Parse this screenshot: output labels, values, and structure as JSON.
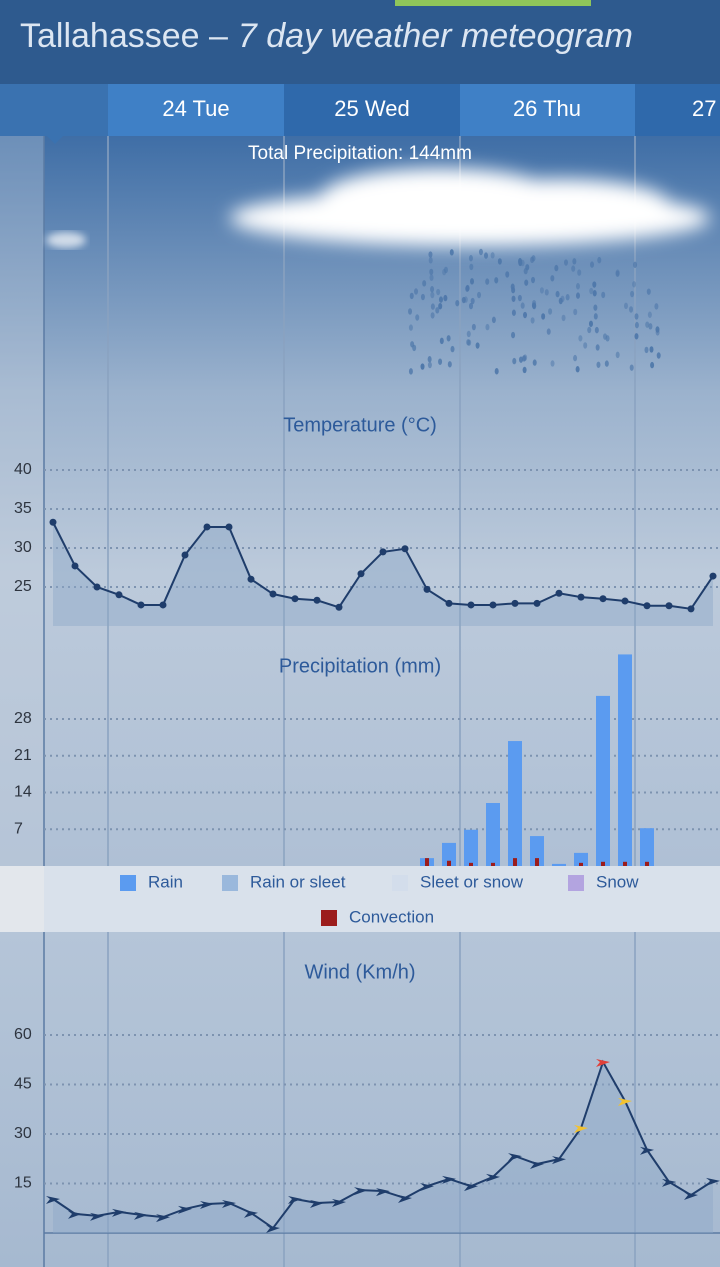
{
  "header": {
    "title": "Tallahassee –",
    "subtitle": "7 day weather meteogram"
  },
  "days": [
    "24 Tue",
    "25 Wed",
    "26 Thu",
    "27"
  ],
  "total_precipitation": "Total Precipitation: 144mm",
  "chart_data": [
    {
      "type": "line",
      "title": "Temperature (°C)",
      "values": [
        33.3,
        27.7,
        25,
        24,
        22.7,
        22.7,
        29.1,
        32.7,
        32.7,
        26,
        24.1,
        23.5,
        23.3,
        22.4,
        26.7,
        29.5,
        29.9,
        24.7,
        22.9,
        22.7,
        22.7,
        22.9,
        22.9,
        24.2,
        23.7,
        23.5,
        23.2,
        22.6,
        22.6,
        22.2,
        26.4
      ],
      "color": "#1f3d6b",
      "ylim": [
        20,
        40
      ],
      "yticks": [
        25,
        30,
        35,
        40
      ],
      "grid": true,
      "top_line_color": "#e0504a"
    },
    {
      "type": "bar",
      "title": "Precipitation (mm)",
      "series": [
        {
          "name": "Rain",
          "color": "#5b9bf0",
          "values": [
            null,
            null,
            null,
            null,
            null,
            null,
            null,
            null,
            null,
            null,
            null,
            null,
            null,
            null,
            null,
            null,
            null,
            1.5,
            4.4,
            6.9,
            12,
            23.8,
            5.7,
            0.4,
            2.5,
            32.4,
            40.3,
            7.2,
            null,
            null,
            null
          ]
        },
        {
          "name": "Rain or sleet",
          "color": "#9ab8dc",
          "values": [
            null,
            null,
            null,
            null,
            null,
            null,
            null,
            null,
            null,
            null,
            null,
            null,
            null,
            null,
            null,
            null,
            null,
            null,
            null,
            null,
            null,
            null,
            null,
            null,
            null,
            null,
            null,
            null,
            null,
            null,
            null
          ]
        },
        {
          "name": "Sleet or snow",
          "color": "#d3ddeb",
          "values": [
            null,
            null,
            null,
            null,
            null,
            null,
            null,
            null,
            null,
            null,
            null,
            null,
            null,
            null,
            null,
            null,
            null,
            null,
            null,
            null,
            null,
            null,
            null,
            null,
            null,
            null,
            null,
            null,
            null,
            null,
            null
          ]
        },
        {
          "name": "Snow",
          "color": "#b3a4e0",
          "values": [
            null,
            null,
            null,
            null,
            null,
            null,
            null,
            null,
            null,
            null,
            null,
            null,
            null,
            null,
            null,
            null,
            null,
            null,
            null,
            null,
            null,
            null,
            null,
            null,
            null,
            null,
            null,
            null,
            null,
            null,
            null
          ]
        },
        {
          "name": "Convection",
          "color": "#9b1c1c",
          "values": [
            null,
            null,
            null,
            null,
            null,
            null,
            null,
            null,
            null,
            null,
            null,
            null,
            null,
            null,
            null,
            null,
            null,
            1.5,
            1,
            0.6,
            0.6,
            1.5,
            1.5,
            null,
            0.6,
            0.8,
            0.8,
            0.8,
            null,
            null,
            null
          ]
        }
      ],
      "ylim": [
        0,
        42
      ],
      "yticks": [
        7,
        14,
        21,
        28
      ],
      "grid": true
    },
    {
      "type": "line",
      "title": "Wind (Km/h)",
      "values": [
        10.3,
        5.8,
        5.2,
        6.4,
        5.5,
        4.8,
        7.3,
        8.8,
        9.1,
        6.1,
        1.5,
        10.3,
        9.1,
        9.4,
        13,
        12.7,
        10.6,
        14.2,
        16.4,
        14.2,
        17,
        23.3,
        20.9,
        22.4,
        31.8,
        51.8,
        40,
        25.2,
        15.5,
        11.5,
        15.8
      ],
      "color": "#1f3d6b",
      "point_colors": [
        "#1f3d6b",
        "#1f3d6b",
        "#1f3d6b",
        "#1f3d6b",
        "#1f3d6b",
        "#1f3d6b",
        "#1f3d6b",
        "#1f3d6b",
        "#1f3d6b",
        "#1f3d6b",
        "#1f3d6b",
        "#1f3d6b",
        "#1f3d6b",
        "#1f3d6b",
        "#1f3d6b",
        "#1f3d6b",
        "#1f3d6b",
        "#1f3d6b",
        "#1f3d6b",
        "#1f3d6b",
        "#1f3d6b",
        "#1f3d6b",
        "#1f3d6b",
        "#1f3d6b",
        "#f2c230",
        "#e0403a",
        "#f2c230",
        "#1f3d6b",
        "#1f3d6b",
        "#1f3d6b",
        "#1f3d6b"
      ],
      "ylim": [
        0,
        65
      ],
      "yticks": [
        15,
        30,
        45,
        60
      ],
      "grid": true
    }
  ]
}
